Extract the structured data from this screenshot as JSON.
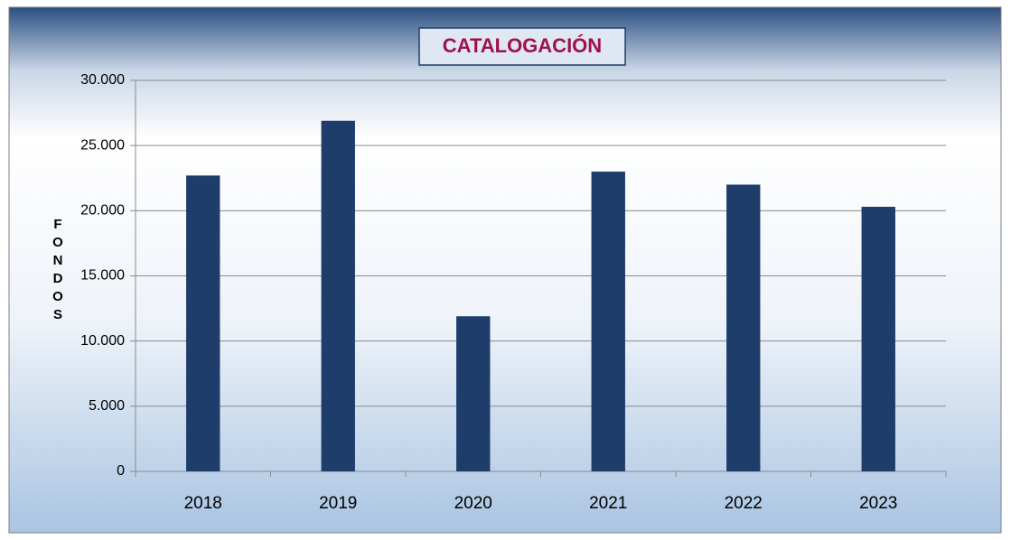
{
  "chart_data": {
    "type": "bar",
    "title": "CATALOGACIÓN",
    "y_label": "FONDOS",
    "categories": [
      "2018",
      "2019",
      "2020",
      "2021",
      "2022",
      "2023"
    ],
    "values": [
      22700,
      26900,
      11900,
      23000,
      22000,
      20300
    ],
    "color": "#1f3d6b",
    "ylim": [
      0,
      30000
    ],
    "yticks": [
      0,
      {
        "value": 5000,
        "label": "5.000"
      },
      {
        "value": 10000,
        "label": "10.000"
      },
      {
        "value": 15000,
        "label": "15.000"
      },
      {
        "value": 20000,
        "label": "20.000"
      },
      {
        "value": 25000,
        "label": "25.000"
      },
      {
        "value": 30000,
        "label": "30.000"
      }
    ],
    "grid": true
  }
}
